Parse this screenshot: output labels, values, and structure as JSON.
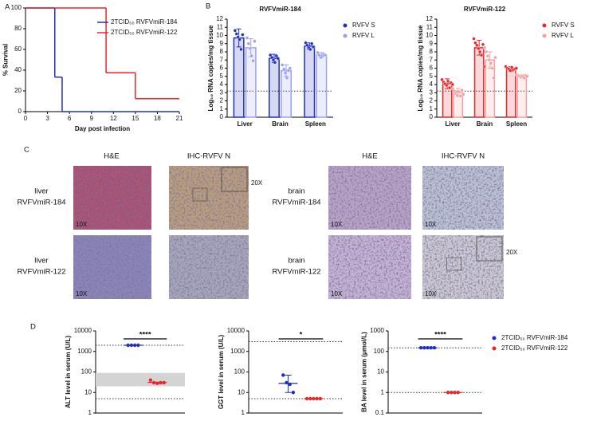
{
  "panel_labels": [
    "A",
    "B",
    "C",
    "D"
  ],
  "chart_data": [
    {
      "type": "step",
      "xlabel": "Day post infection",
      "ylabel": "% Survival",
      "xlim": [
        0,
        21
      ],
      "xticks": [
        0,
        3,
        6,
        9,
        12,
        15,
        18,
        21
      ],
      "ylim": [
        0,
        100
      ],
      "yticks": [
        0,
        20,
        40,
        60,
        80,
        100
      ],
      "legend": "upper right",
      "series": [
        {
          "name": "2TCID₅₀ RVFVmiR-184",
          "color": "#1f2fbf",
          "x": [
            0,
            4,
            5
          ],
          "values": [
            100,
            33.3,
            0
          ]
        },
        {
          "name": "2TCID₅₀ RVFVmiR-122",
          "color": "#e8272b",
          "x": [
            0,
            11,
            15
          ],
          "values": [
            100,
            37.5,
            12.5
          ]
        }
      ]
    },
    {
      "type": "bar",
      "title": "RVFVmiR-184",
      "ylabel": "Log₁₀ RNA copies/mg tissue",
      "categories": [
        "Liver",
        "Brain",
        "Spleen"
      ],
      "ylim": [
        0,
        12
      ],
      "yticks": [
        0,
        1,
        2,
        3,
        4,
        5,
        6,
        7,
        8,
        9,
        10,
        11,
        12
      ],
      "reference_lines": [
        3.2
      ],
      "legend": "right",
      "series": [
        {
          "name": "RVFV S",
          "color": "#1f2fbf",
          "values": [
            9.7,
            7.2,
            8.7
          ],
          "errors": [
            1.1,
            0.5,
            0.4
          ],
          "points": [
            [
              10.6,
              10.2,
              9.8,
              9.5,
              8.3,
              10.1
            ],
            [
              7.6,
              7.3,
              7.0,
              6.7,
              7.5,
              7.2
            ],
            [
              9.1,
              8.8,
              8.5,
              8.3,
              9.0,
              8.6
            ]
          ]
        },
        {
          "name": "RVFV L",
          "color": "#9b9ff0",
          "values": [
            8.5,
            5.7,
            7.6
          ],
          "errors": [
            1.1,
            0.7,
            0.3
          ],
          "points": [
            [
              9.7,
              9.0,
              8.4,
              7.5,
              6.9,
              9.3
            ],
            [
              6.4,
              5.9,
              5.4,
              4.8,
              5.7,
              6.0
            ],
            [
              7.9,
              7.6,
              7.3,
              7.5,
              7.7,
              7.6
            ]
          ]
        }
      ]
    },
    {
      "type": "bar",
      "title": "RVFVmiR-122",
      "ylabel": "Log₁₀ RNA copies/mg tissue",
      "categories": [
        "Liver",
        "Brain",
        "Spleen"
      ],
      "ylim": [
        0,
        12
      ],
      "yticks": [
        0,
        1,
        2,
        3,
        4,
        5,
        6,
        7,
        8,
        9,
        10,
        11,
        12
      ],
      "reference_lines": [
        3.2
      ],
      "legend": "right",
      "series": [
        {
          "name": "RVFV S",
          "color": "#e8272b",
          "values": [
            4.1,
            8.5,
            5.9
          ],
          "errors": [
            0.6,
            0.9,
            0.3
          ],
          "points": [
            [
              4.6,
              4.3,
              4.1,
              3.9,
              4.4,
              3.6,
              4.2,
              4.0
            ],
            [
              9.6,
              9.1,
              8.8,
              8.4,
              8.0,
              7.6,
              8.9,
              6.2
            ],
            [
              6.2,
              6.0,
              5.9,
              5.7,
              6.1,
              5.8,
              5.9,
              6.0
            ]
          ]
        },
        {
          "name": "RVFV L",
          "color": "#f3a0a3",
          "values": [
            3.0,
            7.0,
            5.0
          ],
          "errors": [
            0.5,
            1.0,
            0.2
          ],
          "points": [
            [
              3.5,
              3.2,
              2.9,
              2.7,
              3.1,
              2.6,
              3.3,
              2.8
            ],
            [
              8.5,
              8.0,
              7.5,
              7.0,
              6.6,
              6.0,
              4.8,
              7.3
            ],
            [
              5.2,
              5.1,
              5.0,
              4.9,
              5.0,
              4.8,
              5.1,
              5.0
            ]
          ]
        }
      ]
    },
    {
      "type": "dot",
      "ylabel": "ALT level in serum (U/L)",
      "ylog": true,
      "ylim": [
        1,
        10000
      ],
      "yticks": [
        1,
        10,
        100,
        1000,
        10000
      ],
      "reference_lines": [
        2000,
        5
      ],
      "band": [
        20,
        90
      ],
      "significance": "****",
      "series": [
        {
          "color": "#1f2fbf",
          "values": [
            2000,
            2000,
            2000,
            2000
          ],
          "center": 2000
        },
        {
          "color": "#e8272b",
          "values": [
            40,
            30,
            28,
            30,
            30
          ],
          "center": 31
        }
      ]
    },
    {
      "type": "dot",
      "ylabel": "GGT level in serum (U/L)",
      "ylog": true,
      "ylim": [
        1,
        10000
      ],
      "yticks": [
        1,
        10,
        100,
        1000,
        10000
      ],
      "reference_lines": [
        3000,
        5
      ],
      "significance": "*",
      "series": [
        {
          "color": "#1f2fbf",
          "values": [
            70,
            30,
            25,
            10
          ],
          "center": 28,
          "range": [
            10,
            70
          ]
        },
        {
          "color": "#e8272b",
          "values": [
            5,
            5,
            5,
            5,
            5
          ],
          "center": 5
        }
      ]
    },
    {
      "type": "dot",
      "ylabel": "BA level in serum (μmol/L)",
      "ylog": true,
      "ylim": [
        0.1,
        1000
      ],
      "yticks": [
        0.1,
        1,
        10,
        100,
        1000
      ],
      "reference_lines": [
        150,
        1
      ],
      "significance": "****",
      "legend": "right",
      "series": [
        {
          "name": "2TCID₅₀ RVFVmiR-184",
          "color": "#1f2fbf",
          "values": [
            150,
            150,
            150,
            150,
            150
          ],
          "center": 150
        },
        {
          "name": "2TCID₅₀ RVFVmiR-122",
          "color": "#e8272b",
          "values": [
            1,
            1,
            1,
            1
          ],
          "center": 1
        }
      ]
    }
  ],
  "histology": {
    "columns": [
      "H&E",
      "IHC-RVFV N",
      "H&E",
      "IHC-RVFV N"
    ],
    "rows": [
      {
        "label": [
          "liver",
          "RVFVmiR-184"
        ],
        "images": [
          {
            "magnification": "10X"
          },
          {
            "inset": "20X"
          }
        ]
      },
      {
        "label": [
          "liver",
          "RVFVmiR-122"
        ],
        "images": [
          {
            "magnification": "10X"
          },
          {}
        ]
      },
      {
        "label": [
          "brain",
          "RVFVmiR-184"
        ],
        "images": [
          {
            "magnification": "10X"
          },
          {
            "magnification": "10X"
          }
        ]
      },
      {
        "label": [
          "brain",
          "RVFVmiR-122"
        ],
        "images": [
          {
            "magnification": "10X"
          },
          {
            "magnification": "10X",
            "inset": "20X"
          }
        ]
      }
    ]
  }
}
